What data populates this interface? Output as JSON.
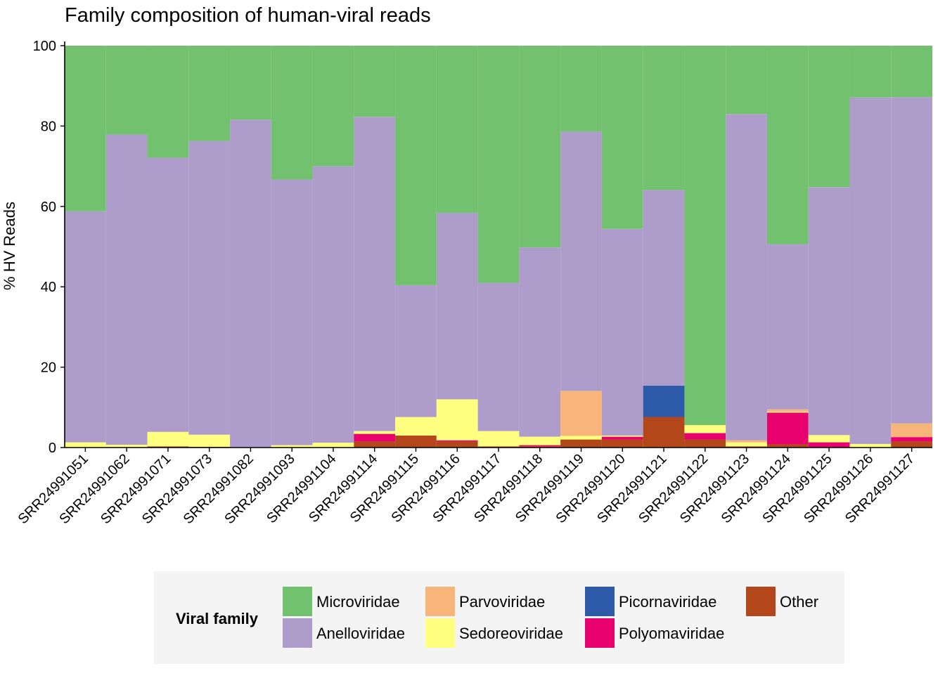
{
  "chart_data": {
    "type": "bar",
    "stacked": true,
    "title": "Family composition of human-viral reads",
    "xlabel": "",
    "ylabel": "% HV Reads",
    "ylim": [
      0,
      100
    ],
    "yticks": [
      0,
      20,
      40,
      60,
      80,
      100
    ],
    "grid": false,
    "legend_position": "bottom",
    "legend_title": "Viral family",
    "categories": [
      "SRR24991051",
      "SRR24991062",
      "SRR24991071",
      "SRR24991073",
      "SRR24991082",
      "SRR24991093",
      "SRR24991104",
      "SRR24991114",
      "SRR24991115",
      "SRR24991116",
      "SRR24991117",
      "SRR24991118",
      "SRR24991119",
      "SRR24991120",
      "SRR24991121",
      "SRR24991122",
      "SRR24991123",
      "SRR24991124",
      "SRR24991125",
      "SRR24991126",
      "SRR24991127"
    ],
    "series": [
      {
        "name": "Other",
        "color": "#B3471A",
        "values": [
          0,
          0,
          0.3,
          0.2,
          0,
          0,
          0,
          1.5,
          3.0,
          1.5,
          0.3,
          0.3,
          2.0,
          2.0,
          7.6,
          2.0,
          0.3,
          0.8,
          0,
          0,
          1.5
        ]
      },
      {
        "name": "Polyomaviridae",
        "color": "#E7006E",
        "values": [
          0,
          0,
          0,
          0,
          0,
          0,
          0,
          1.9,
          0,
          0.3,
          0,
          0.3,
          0,
          0.7,
          0,
          1.6,
          0,
          7.9,
          1.3,
          0,
          1.1
        ]
      },
      {
        "name": "Picornaviridae",
        "color": "#2D5AA8",
        "values": [
          0,
          0,
          0,
          0,
          0,
          0,
          0,
          0,
          0,
          0,
          0,
          0,
          0,
          0,
          7.8,
          0,
          0,
          0,
          0,
          0,
          0
        ]
      },
      {
        "name": "Sedoreoviridae",
        "color": "#FFFF80",
        "values": [
          1.3,
          0.7,
          3.6,
          3.0,
          0,
          0.6,
          1.2,
          0.7,
          4.6,
          10.2,
          3.8,
          2.1,
          0.9,
          0.3,
          0,
          2.0,
          1.0,
          0.2,
          1.8,
          0.9,
          0
        ]
      },
      {
        "name": "Parvoviridae",
        "color": "#F8B57A",
        "values": [
          0,
          0,
          0,
          0,
          0,
          0,
          0,
          0,
          0,
          0,
          0,
          0,
          11.2,
          0,
          0,
          0,
          0.5,
          0.6,
          0,
          0,
          3.4
        ]
      },
      {
        "name": "Anelloviridae",
        "color": "#AE9CCB",
        "values": [
          57.5,
          77.2,
          68.2,
          73.1,
          81.6,
          66.1,
          68.8,
          78.2,
          32.8,
          46.4,
          36.9,
          47.1,
          64.5,
          51.4,
          48.7,
          0,
          81.2,
          41.1,
          61.7,
          86.2,
          81.2
        ]
      },
      {
        "name": "Microviridae",
        "color": "#71C16F",
        "values": [
          41.2,
          22.1,
          27.9,
          23.7,
          18.4,
          33.3,
          30.0,
          17.7,
          59.6,
          41.6,
          59.0,
          50.2,
          21.4,
          45.6,
          35.9,
          94.4,
          17.0,
          49.4,
          35.2,
          12.9,
          12.8
        ]
      }
    ]
  },
  "legend": {
    "title": "Viral family",
    "items": [
      {
        "name": "Microviridae",
        "color": "#71C16F"
      },
      {
        "name": "Anelloviridae",
        "color": "#AE9CCB"
      },
      {
        "name": "Parvoviridae",
        "color": "#F8B57A"
      },
      {
        "name": "Sedoreoviridae",
        "color": "#FFFF80"
      },
      {
        "name": "Picornaviridae",
        "color": "#2D5AA8"
      },
      {
        "name": "Polyomaviridae",
        "color": "#E7006E"
      },
      {
        "name": "Other",
        "color": "#B3471A"
      }
    ]
  }
}
